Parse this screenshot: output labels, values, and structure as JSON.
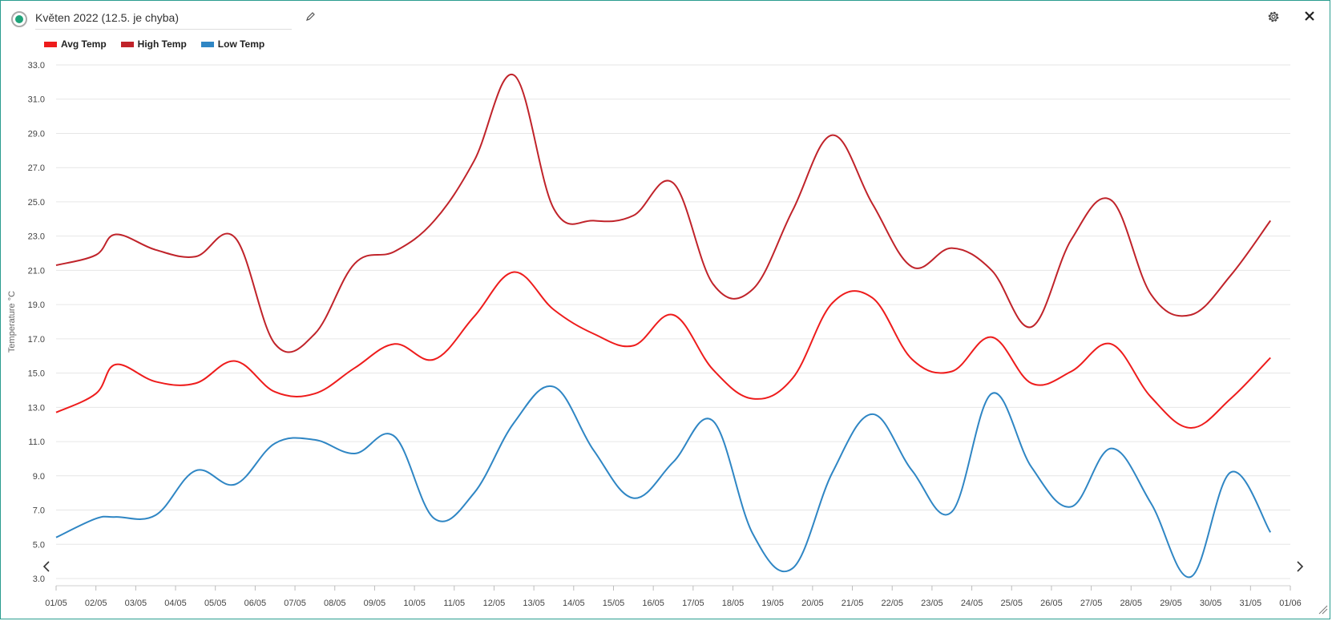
{
  "header": {
    "title": "Květen 2022 (12.5. je chyba)",
    "status_icon": "status-radio-icon",
    "edit_icon": "pencil-icon",
    "settings_icon": "gear-icon",
    "close_icon": "close-icon"
  },
  "colors": {
    "avg": "#ee1c1c",
    "high": "#c0232a",
    "low": "#2f86c4",
    "grid": "#e6e6e6",
    "frame": "#2a9d8f"
  },
  "chart_data": {
    "type": "line",
    "ylabel": "Temperature °C",
    "ylim": [
      3.0,
      33.0
    ],
    "y_ticks": [
      "3.0",
      "5.0",
      "7.0",
      "9.0",
      "11.0",
      "13.0",
      "15.0",
      "17.0",
      "19.0",
      "21.0",
      "23.0",
      "25.0",
      "27.0",
      "29.0",
      "31.0",
      "33.0"
    ],
    "categories": [
      "01/05",
      "02/05",
      "03/05",
      "04/05",
      "05/05",
      "06/05",
      "07/05",
      "08/05",
      "09/05",
      "10/05",
      "11/05",
      "12/05",
      "13/05",
      "14/05",
      "15/05",
      "16/05",
      "17/05",
      "18/05",
      "19/05",
      "20/05",
      "21/05",
      "22/05",
      "23/05",
      "24/05",
      "25/05",
      "26/05",
      "27/05",
      "28/05",
      "29/05",
      "30/05",
      "31/05",
      "01/06"
    ],
    "grid": true,
    "legend_position": "top-left",
    "series": [
      {
        "name": "Avg Temp",
        "points": [
          [
            "01/05",
            12.7
          ],
          [
            "02/05",
            13.8
          ],
          [
            "02/05 12:00",
            15.5
          ],
          [
            "03/05 12:00",
            14.5
          ],
          [
            "04/05 12:00",
            14.4
          ],
          [
            "05/05 12:00",
            15.7
          ],
          [
            "06/05 12:00",
            13.9
          ],
          [
            "07/05 12:00",
            13.8
          ],
          [
            "08/05 12:00",
            15.3
          ],
          [
            "09/05 12:00",
            16.7
          ],
          [
            "10/05 12:00",
            15.8
          ],
          [
            "11/05 12:00",
            18.3
          ],
          [
            "12/05 12:00",
            20.9
          ],
          [
            "13/05 12:00",
            18.7
          ],
          [
            "14/05 12:00",
            17.3
          ],
          [
            "15/05 12:00",
            16.6
          ],
          [
            "16/05 12:00",
            18.4
          ],
          [
            "17/05 12:00",
            15.2
          ],
          [
            "18/05 12:00",
            13.5
          ],
          [
            "19/05 12:00",
            14.7
          ],
          [
            "20/05 12:00",
            19.1
          ],
          [
            "21/05 12:00",
            19.4
          ],
          [
            "22/05 12:00",
            15.8
          ],
          [
            "23/05 12:00",
            15.1
          ],
          [
            "24/05 12:00",
            17.1
          ],
          [
            "25/05 12:00",
            14.4
          ],
          [
            "26/05 12:00",
            15.1
          ],
          [
            "27/05 12:00",
            16.7
          ],
          [
            "28/05 12:00",
            13.6
          ],
          [
            "29/05 12:00",
            11.8
          ],
          [
            "30/05 12:00",
            13.5
          ],
          [
            "31/05 12:00",
            15.9
          ]
        ]
      },
      {
        "name": "High Temp",
        "points": [
          [
            "01/05",
            21.3
          ],
          [
            "02/05",
            21.9
          ],
          [
            "02/05 12:00",
            23.1
          ],
          [
            "03/05 12:00",
            22.2
          ],
          [
            "04/05 12:00",
            21.8
          ],
          [
            "05/05 12:00",
            22.9
          ],
          [
            "06/05 12:00",
            16.7
          ],
          [
            "07/05 12:00",
            17.3
          ],
          [
            "08/05 12:00",
            21.4
          ],
          [
            "09/05 12:00",
            22.1
          ],
          [
            "10/05 12:00",
            23.9
          ],
          [
            "11/05 12:00",
            27.4
          ],
          [
            "12/05 12:00",
            32.4
          ],
          [
            "13/05 12:00",
            24.6
          ],
          [
            "14/05 12:00",
            23.9
          ],
          [
            "15/05 12:00",
            24.2
          ],
          [
            "16/05 12:00",
            26.1
          ],
          [
            "17/05 12:00",
            20.2
          ],
          [
            "18/05 12:00",
            19.9
          ],
          [
            "19/05 12:00",
            24.5
          ],
          [
            "20/05 12:00",
            28.9
          ],
          [
            "21/05 12:00",
            24.9
          ],
          [
            "22/05 12:00",
            21.2
          ],
          [
            "23/05 12:00",
            22.3
          ],
          [
            "24/05 12:00",
            21.0
          ],
          [
            "25/05 12:00",
            17.7
          ],
          [
            "26/05 12:00",
            22.8
          ],
          [
            "27/05 12:00",
            25.1
          ],
          [
            "28/05 12:00",
            19.6
          ],
          [
            "29/05 12:00",
            18.4
          ],
          [
            "30/05 12:00",
            20.7
          ],
          [
            "31/05 12:00",
            23.9
          ]
        ]
      },
      {
        "name": "Low Temp",
        "points": [
          [
            "01/05",
            5.4
          ],
          [
            "02/05",
            6.5
          ],
          [
            "02/05 12:00",
            6.6
          ],
          [
            "03/05 12:00",
            6.7
          ],
          [
            "04/05 12:00",
            9.3
          ],
          [
            "05/05 12:00",
            8.5
          ],
          [
            "06/05 12:00",
            10.9
          ],
          [
            "07/05 12:00",
            11.1
          ],
          [
            "08/05 12:00",
            10.3
          ],
          [
            "09/05 12:00",
            11.3
          ],
          [
            "10/05 12:00",
            6.5
          ],
          [
            "11/05 12:00",
            8.0
          ],
          [
            "12/05 12:00",
            12.1
          ],
          [
            "13/05 12:00",
            14.2
          ],
          [
            "14/05 12:00",
            10.5
          ],
          [
            "15/05 12:00",
            7.7
          ],
          [
            "16/05 12:00",
            9.8
          ],
          [
            "17/05 12:00",
            12.2
          ],
          [
            "18/05 12:00",
            5.6
          ],
          [
            "19/05 12:00",
            3.6
          ],
          [
            "20/05 12:00",
            9.2
          ],
          [
            "21/05 12:00",
            12.6
          ],
          [
            "22/05 12:00",
            9.3
          ],
          [
            "23/05 12:00",
            6.9
          ],
          [
            "24/05 12:00",
            13.8
          ],
          [
            "25/05 12:00",
            9.5
          ],
          [
            "26/05 12:00",
            7.2
          ],
          [
            "27/05 12:00",
            10.6
          ],
          [
            "28/05 12:00",
            7.4
          ],
          [
            "29/05 12:00",
            3.1
          ],
          [
            "30/05 12:00",
            9.2
          ],
          [
            "31/05 12:00",
            5.7
          ]
        ]
      }
    ]
  },
  "nav": {
    "prev_icon": "chevron-left-icon",
    "next_icon": "chevron-right-icon",
    "resize_icon": "resize-grip-icon"
  }
}
